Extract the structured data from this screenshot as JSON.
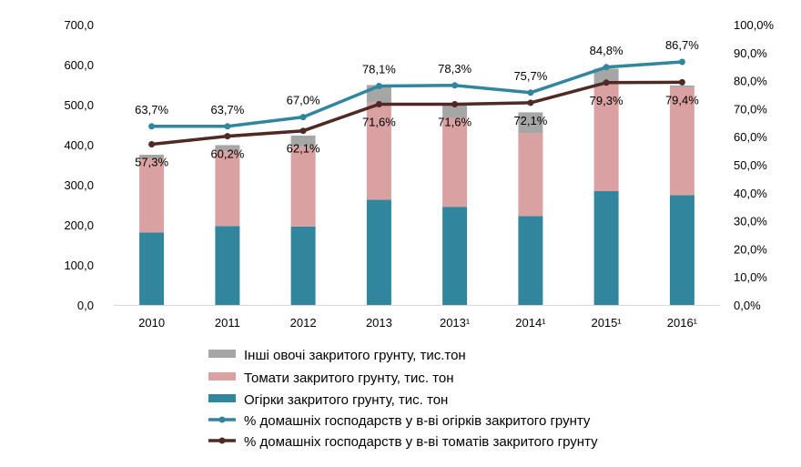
{
  "chart_data": {
    "type": "bar",
    "title": "",
    "categories": [
      "2010",
      "2011",
      "2012",
      "2013",
      "2013¹",
      "2014¹",
      "2015¹",
      "2016¹"
    ],
    "stacked": true,
    "y_left": {
      "range": [
        0,
        700
      ],
      "ticks": [
        "0,0",
        "100,0",
        "200,0",
        "300,0",
        "400,0",
        "500,0",
        "600,0",
        "700,0"
      ]
    },
    "y_right": {
      "range": [
        0,
        100
      ],
      "ticks": [
        "0,0%",
        "10,0%",
        "20,0%",
        "30,0%",
        "40,0%",
        "50,0%",
        "60,0%",
        "70,0%",
        "80,0%",
        "90,0%",
        "100,0%"
      ]
    },
    "grid": false,
    "legend_position": "bottom",
    "bar_series": [
      {
        "name": "Огірки закритого грунту, тис. тон",
        "color": "#31859c",
        "values": [
          181,
          197,
          196,
          263,
          245,
          222,
          284,
          274
        ]
      },
      {
        "name": "Томати закритого грунту, тис. тон",
        "color": "#d9a1a1",
        "values": [
          184,
          186,
          200,
          242,
          222,
          207,
          268,
          270
        ]
      },
      {
        "name": "Інші овочі закритого грунту, тис.тон",
        "color": "#a6a6a6",
        "values": [
          10,
          16,
          27,
          44,
          33,
          52,
          38,
          4
        ]
      }
    ],
    "line_series": [
      {
        "name": "% домашніх господарств у в-ві огірків закритого грунту",
        "color": "#31859c",
        "values": [
          63.7,
          63.7,
          67.0,
          78.1,
          78.3,
          75.7,
          84.8,
          86.7
        ],
        "labels": [
          "63,7%",
          "63,7%",
          "67,0%",
          "78,1%",
          "78,3%",
          "75,7%",
          "84,8%",
          "86,7%"
        ]
      },
      {
        "name": "% домашніх господарств у в-ві томатів закритого грунту",
        "color": "#4f2a24",
        "values": [
          57.3,
          60.2,
          62.1,
          71.6,
          71.6,
          72.1,
          79.3,
          79.4
        ],
        "labels": [
          "57,3%",
          "60,2%",
          "62,1%",
          "71,6%",
          "71,6%",
          "72,1%",
          "79,3%",
          "79,4%"
        ]
      }
    ],
    "legend_order": [
      "Інші овочі закритого грунту, тис.тон",
      "Томати закритого грунту, тис. тон",
      "Огірки закритого грунту, тис. тон",
      "% домашніх господарств у в-ві огірків закритого грунту",
      "% домашніх господарств у в-ві томатів закритого грунту"
    ]
  }
}
